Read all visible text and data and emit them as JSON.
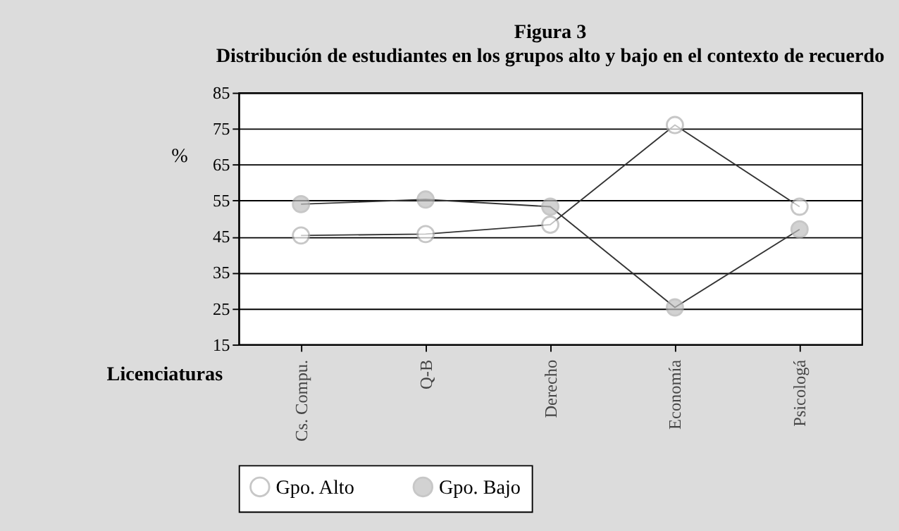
{
  "chart_data": {
    "type": "line",
    "title": "Figura 3",
    "subtitle": "Distribución de estudiantes en los grupos alto y bajo en el contexto de recuerdo",
    "xlabel": "Licenciaturas",
    "ylabel": "%",
    "categories": [
      "Cs. Compu.",
      "Q-B",
      "Derecho",
      "Economía",
      "Psicologá"
    ],
    "series": [
      {
        "name": "Gpo. Alto",
        "color": "#ffffff",
        "values": [
          45.3,
          45.7,
          48.3,
          76,
          53.3
        ]
      },
      {
        "name": "Gpo. Bajo",
        "color": "#c0c0c0",
        "values": [
          54,
          55.3,
          53.3,
          25.3,
          47
        ]
      }
    ],
    "ylim": [
      15,
      85
    ],
    "yticks": [
      15,
      25,
      35,
      45,
      55,
      65,
      75,
      85
    ],
    "grid": "y",
    "legend": "bottom",
    "marker": "circle",
    "line_style": "solid"
  }
}
